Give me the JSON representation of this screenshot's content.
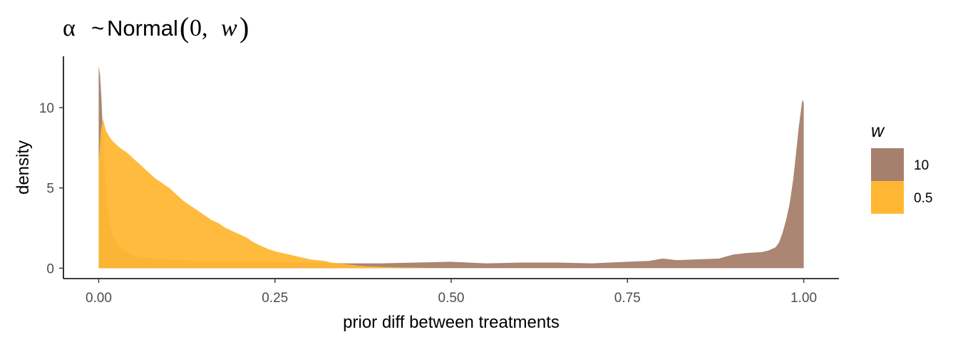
{
  "chart_data": {
    "type": "area",
    "title": {
      "alpha": "α",
      "tilde": "~",
      "dist": "Normal",
      "open": "(",
      "zero": "0,",
      "param": "w",
      "close": ")"
    },
    "xlabel": "prior diff between treatments",
    "ylabel": "density",
    "xlim": [
      -0.05,
      1.05
    ],
    "ylim": [
      -0.65,
      13.2
    ],
    "x_ticks": [
      {
        "value": 0.0,
        "label": "0.00"
      },
      {
        "value": 0.25,
        "label": "0.25"
      },
      {
        "value": 0.5,
        "label": "0.50"
      },
      {
        "value": 0.75,
        "label": "0.75"
      },
      {
        "value": 1.0,
        "label": "1.00"
      }
    ],
    "y_ticks": [
      {
        "value": 0,
        "label": "0"
      },
      {
        "value": 5,
        "label": "5"
      },
      {
        "value": 10,
        "label": "10"
      }
    ],
    "grid": false,
    "legend": {
      "title": "w",
      "position": "right",
      "items": [
        {
          "label": "10",
          "color": "#a5806c"
        },
        {
          "label": "0.5",
          "color": "#ffb733"
        }
      ]
    },
    "series": [
      {
        "name": "10",
        "color": "#a5806c",
        "opacity": 0.95,
        "x": [
          0.0,
          0.002,
          0.004,
          0.006,
          0.008,
          0.01,
          0.012,
          0.015,
          0.02,
          0.025,
          0.03,
          0.04,
          0.05,
          0.06,
          0.08,
          0.1,
          0.12,
          0.15,
          0.2,
          0.25,
          0.3,
          0.35,
          0.4,
          0.45,
          0.5,
          0.55,
          0.6,
          0.65,
          0.7,
          0.75,
          0.78,
          0.8,
          0.82,
          0.85,
          0.88,
          0.9,
          0.92,
          0.94,
          0.95,
          0.96,
          0.965,
          0.97,
          0.975,
          0.98,
          0.985,
          0.99,
          0.993,
          0.996,
          0.998,
          1.0
        ],
        "y": [
          12.6,
          12.0,
          10.5,
          8.3,
          6.4,
          5.0,
          3.9,
          2.9,
          2.1,
          1.6,
          1.3,
          1.0,
          0.8,
          0.7,
          0.6,
          0.55,
          0.5,
          0.45,
          0.4,
          0.38,
          0.35,
          0.3,
          0.3,
          0.35,
          0.4,
          0.3,
          0.35,
          0.35,
          0.3,
          0.4,
          0.45,
          0.6,
          0.5,
          0.55,
          0.6,
          0.85,
          0.95,
          1.0,
          1.1,
          1.3,
          1.6,
          2.2,
          3.0,
          4.0,
          5.5,
          7.5,
          8.8,
          9.8,
          10.5,
          10.3
        ]
      },
      {
        "name": "0.5",
        "color": "#ffb733",
        "opacity": 0.95,
        "x": [
          0.0,
          0.003,
          0.006,
          0.01,
          0.015,
          0.02,
          0.03,
          0.04,
          0.05,
          0.06,
          0.07,
          0.08,
          0.09,
          0.1,
          0.11,
          0.12,
          0.13,
          0.14,
          0.15,
          0.16,
          0.17,
          0.18,
          0.19,
          0.2,
          0.21,
          0.22,
          0.23,
          0.24,
          0.25,
          0.26,
          0.27,
          0.28,
          0.29,
          0.3,
          0.31,
          0.32,
          0.33,
          0.34,
          0.35,
          0.36,
          0.37,
          0.38,
          0.4,
          0.42,
          0.45,
          0.47,
          0.5
        ],
        "y": [
          6.5,
          8.6,
          9.3,
          8.6,
          8.2,
          7.9,
          7.5,
          7.2,
          6.8,
          6.4,
          6.0,
          5.6,
          5.3,
          5.0,
          4.6,
          4.2,
          3.9,
          3.6,
          3.3,
          3.0,
          2.8,
          2.5,
          2.3,
          2.1,
          1.9,
          1.6,
          1.4,
          1.2,
          1.05,
          0.95,
          0.85,
          0.75,
          0.65,
          0.55,
          0.5,
          0.45,
          0.35,
          0.3,
          0.25,
          0.2,
          0.15,
          0.12,
          0.08,
          0.05,
          0.03,
          0.01,
          0.0
        ]
      }
    ]
  }
}
